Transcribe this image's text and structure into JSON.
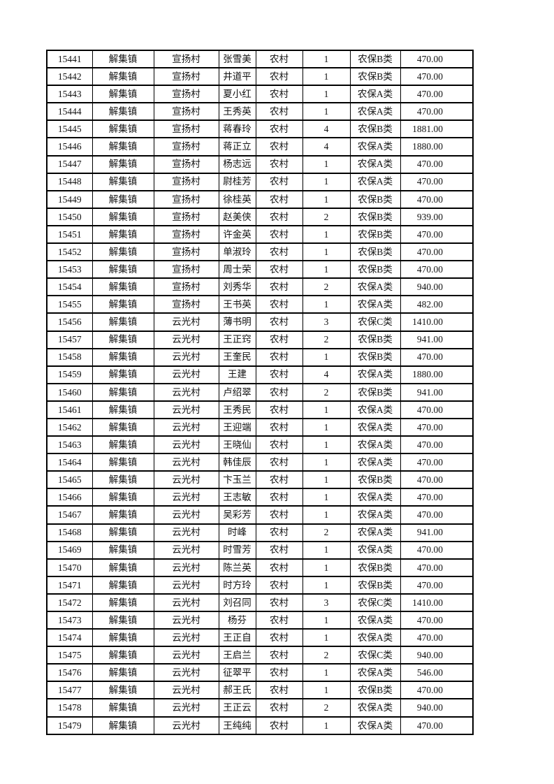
{
  "page": {
    "background_color": "#ffffff",
    "text_color": "#121212",
    "border_color": "#000000"
  },
  "table": {
    "column_keys": [
      "row-id",
      "town",
      "village",
      "person-name",
      "category",
      "person-count",
      "insurance-type",
      "amount"
    ],
    "rows": [
      [
        "15441",
        "解集镇",
        "宣扬村",
        "张雪美",
        "农村",
        "1",
        "农保B类",
        "470.00"
      ],
      [
        "15442",
        "解集镇",
        "宣扬村",
        "井道平",
        "农村",
        "1",
        "农保B类",
        "470.00"
      ],
      [
        "15443",
        "解集镇",
        "宣扬村",
        "夏小红",
        "农村",
        "1",
        "农保A类",
        "470.00"
      ],
      [
        "15444",
        "解集镇",
        "宣扬村",
        "王秀英",
        "农村",
        "1",
        "农保A类",
        "470.00"
      ],
      [
        "15445",
        "解集镇",
        "宣扬村",
        "蒋春玲",
        "农村",
        "4",
        "农保B类",
        "1881.00"
      ],
      [
        "15446",
        "解集镇",
        "宣扬村",
        "蒋正立",
        "农村",
        "4",
        "农保A类",
        "1880.00"
      ],
      [
        "15447",
        "解集镇",
        "宣扬村",
        "杨志远",
        "农村",
        "1",
        "农保A类",
        "470.00"
      ],
      [
        "15448",
        "解集镇",
        "宣扬村",
        "尉桂芳",
        "农村",
        "1",
        "农保A类",
        "470.00"
      ],
      [
        "15449",
        "解集镇",
        "宣扬村",
        "徐桂英",
        "农村",
        "1",
        "农保B类",
        "470.00"
      ],
      [
        "15450",
        "解集镇",
        "宣扬村",
        "赵美侠",
        "农村",
        "2",
        "农保B类",
        "939.00"
      ],
      [
        "15451",
        "解集镇",
        "宣扬村",
        "许金英",
        "农村",
        "1",
        "农保B类",
        "470.00"
      ],
      [
        "15452",
        "解集镇",
        "宣扬村",
        "单淑玲",
        "农村",
        "1",
        "农保B类",
        "470.00"
      ],
      [
        "15453",
        "解集镇",
        "宣扬村",
        "周士荣",
        "农村",
        "1",
        "农保B类",
        "470.00"
      ],
      [
        "15454",
        "解集镇",
        "宣扬村",
        "刘秀华",
        "农村",
        "2",
        "农保A类",
        "940.00"
      ],
      [
        "15455",
        "解集镇",
        "宣扬村",
        "王书英",
        "农村",
        "1",
        "农保A类",
        "482.00"
      ],
      [
        "15456",
        "解集镇",
        "云光村",
        "薄书明",
        "农村",
        "3",
        "农保C类",
        "1410.00"
      ],
      [
        "15457",
        "解集镇",
        "云光村",
        "王正窍",
        "农村",
        "2",
        "农保B类",
        "941.00"
      ],
      [
        "15458",
        "解集镇",
        "云光村",
        "王奎民",
        "农村",
        "1",
        "农保B类",
        "470.00"
      ],
      [
        "15459",
        "解集镇",
        "云光村",
        "王建",
        "农村",
        "4",
        "农保A类",
        "1880.00"
      ],
      [
        "15460",
        "解集镇",
        "云光村",
        "卢绍翠",
        "农村",
        "2",
        "农保B类",
        "941.00"
      ],
      [
        "15461",
        "解集镇",
        "云光村",
        "王秀民",
        "农村",
        "1",
        "农保A类",
        "470.00"
      ],
      [
        "15462",
        "解集镇",
        "云光村",
        "王迎端",
        "农村",
        "1",
        "农保A类",
        "470.00"
      ],
      [
        "15463",
        "解集镇",
        "云光村",
        "王晓仙",
        "农村",
        "1",
        "农保A类",
        "470.00"
      ],
      [
        "15464",
        "解集镇",
        "云光村",
        "韩佳辰",
        "农村",
        "1",
        "农保A类",
        "470.00"
      ],
      [
        "15465",
        "解集镇",
        "云光村",
        "卞玉兰",
        "农村",
        "1",
        "农保B类",
        "470.00"
      ],
      [
        "15466",
        "解集镇",
        "云光村",
        "王志敏",
        "农村",
        "1",
        "农保A类",
        "470.00"
      ],
      [
        "15467",
        "解集镇",
        "云光村",
        "吴彩芳",
        "农村",
        "1",
        "农保A类",
        "470.00"
      ],
      [
        "15468",
        "解集镇",
        "云光村",
        "时峰",
        "农村",
        "2",
        "农保A类",
        "941.00"
      ],
      [
        "15469",
        "解集镇",
        "云光村",
        "时雪芳",
        "农村",
        "1",
        "农保A类",
        "470.00"
      ],
      [
        "15470",
        "解集镇",
        "云光村",
        "陈兰英",
        "农村",
        "1",
        "农保B类",
        "470.00"
      ],
      [
        "15471",
        "解集镇",
        "云光村",
        "时方玲",
        "农村",
        "1",
        "农保B类",
        "470.00"
      ],
      [
        "15472",
        "解集镇",
        "云光村",
        "刘召同",
        "农村",
        "3",
        "农保C类",
        "1410.00"
      ],
      [
        "15473",
        "解集镇",
        "云光村",
        "杨芬",
        "农村",
        "1",
        "农保A类",
        "470.00"
      ],
      [
        "15474",
        "解集镇",
        "云光村",
        "王正自",
        "农村",
        "1",
        "农保A类",
        "470.00"
      ],
      [
        "15475",
        "解集镇",
        "云光村",
        "王启兰",
        "农村",
        "2",
        "农保C类",
        "940.00"
      ],
      [
        "15476",
        "解集镇",
        "云光村",
        "征翠平",
        "农村",
        "1",
        "农保A类",
        "546.00"
      ],
      [
        "15477",
        "解集镇",
        "云光村",
        "郝王氏",
        "农村",
        "1",
        "农保B类",
        "470.00"
      ],
      [
        "15478",
        "解集镇",
        "云光村",
        "王正云",
        "农村",
        "2",
        "农保A类",
        "940.00"
      ],
      [
        "15479",
        "解集镇",
        "云光村",
        "王纯纯",
        "农村",
        "1",
        "农保A类",
        "470.00"
      ]
    ]
  }
}
